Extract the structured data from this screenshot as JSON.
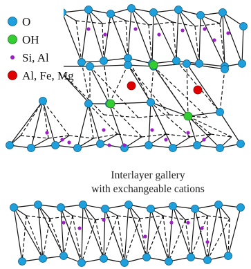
{
  "legend": {
    "o": {
      "label": "O",
      "color": "#1ea0dc",
      "icon": "oxygen-atom-icon"
    },
    "oh": {
      "label": "OH",
      "color": "#33cc33",
      "icon": "hydroxyl-atom-icon"
    },
    "si_al": {
      "label": "Si, Al",
      "color": "#9b1fc4",
      "icon": "tetrahedral-cation-icon"
    },
    "al_fe_mg": {
      "label": "Al, Fe, Mg",
      "color": "#e00000",
      "icon": "octahedral-cation-icon"
    }
  },
  "gallery": {
    "line1": "Interlayer gallery",
    "line2": "with exchangeable cations"
  }
}
